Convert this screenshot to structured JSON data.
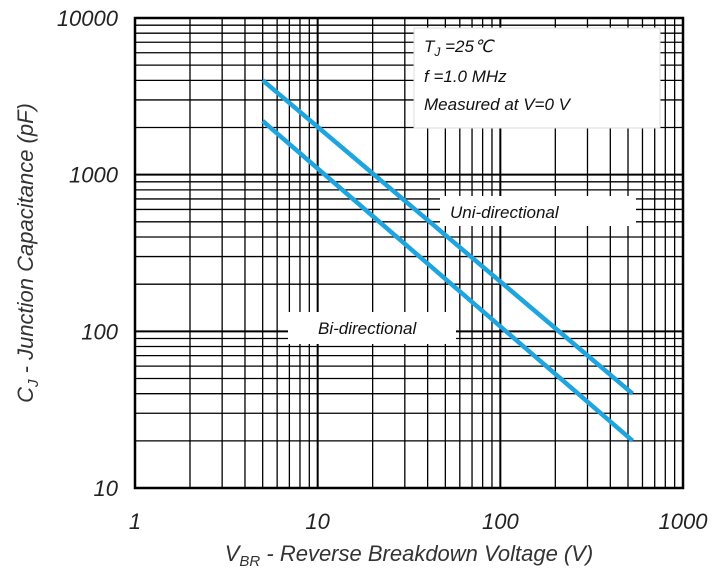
{
  "chart_data": {
    "type": "line",
    "title": "",
    "xlabel_prefix": "V",
    "xlabel_sub": "BR",
    "xlabel_rest": " - Reverse Breakdown Voltage (V)",
    "ylabel_prefix": "C",
    "ylabel_sub": "J",
    "ylabel_rest": " - Junction Capacitance (pF)",
    "xscale": "log",
    "yscale": "log",
    "xlim": [
      1,
      1000
    ],
    "ylim": [
      10,
      10000
    ],
    "x_tick_labels": [
      "1",
      "10",
      "100",
      "1000"
    ],
    "y_tick_labels": [
      "10",
      "100",
      "1000",
      "10000"
    ],
    "grid": true,
    "line_color": "#1ea5e0",
    "series": [
      {
        "name": "Uni-directional",
        "x": [
          5,
          530
        ],
        "y": [
          4000,
          40
        ]
      },
      {
        "name": "Bi-directional",
        "x": [
          5,
          530
        ],
        "y": [
          2200,
          20
        ]
      }
    ],
    "conditions": {
      "tj_prefix": "T",
      "tj_sub": "J",
      "tj_rest": " =25℃",
      "freq": "f =1.0 MHz",
      "measured": "Measured at V=0 V"
    }
  }
}
